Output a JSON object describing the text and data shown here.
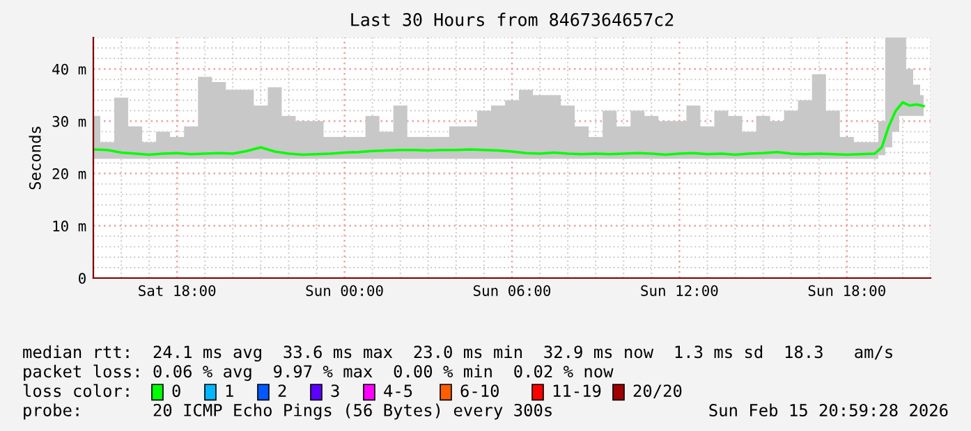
{
  "chart_data": {
    "type": "line",
    "title": "Last 30 Hours from 8467364657c2",
    "ylabel": "Seconds",
    "xlim": [
      "2026-02-14T15:00",
      "2026-02-15T21:00"
    ],
    "xticks": [
      {
        "value": "2026-02-14T18:00",
        "label": "Sat 18:00"
      },
      {
        "value": "2026-02-15T00:00",
        "label": "Sun 00:00"
      },
      {
        "value": "2026-02-15T06:00",
        "label": "Sun 06:00"
      },
      {
        "value": "2026-02-15T12:00",
        "label": "Sun 12:00"
      },
      {
        "value": "2026-02-15T18:00",
        "label": "Sun 18:00"
      }
    ],
    "ylim": [
      0,
      46
    ],
    "yticks": [
      0,
      {
        "value": 10,
        "label": "10 m"
      },
      {
        "value": 20,
        "label": "20 m"
      },
      {
        "value": 30,
        "label": "30 m"
      },
      {
        "value": 40,
        "label": "40 m"
      }
    ],
    "grid": true,
    "x": [
      "2026-02-14T15:00",
      "2026-02-14T15:30",
      "2026-02-14T16:00",
      "2026-02-14T16:30",
      "2026-02-14T17:00",
      "2026-02-14T17:30",
      "2026-02-14T18:00",
      "2026-02-14T18:30",
      "2026-02-14T19:00",
      "2026-02-14T19:30",
      "2026-02-14T20:00",
      "2026-02-14T20:30",
      "2026-02-14T21:00",
      "2026-02-14T21:30",
      "2026-02-14T22:00",
      "2026-02-14T22:30",
      "2026-02-14T23:00",
      "2026-02-14T23:30",
      "2026-02-15T00:00",
      "2026-02-15T00:30",
      "2026-02-15T01:00",
      "2026-02-15T01:30",
      "2026-02-15T02:00",
      "2026-02-15T02:30",
      "2026-02-15T03:00",
      "2026-02-15T03:30",
      "2026-02-15T04:00",
      "2026-02-15T04:30",
      "2026-02-15T05:00",
      "2026-02-15T05:30",
      "2026-02-15T06:00",
      "2026-02-15T06:30",
      "2026-02-15T07:00",
      "2026-02-15T07:30",
      "2026-02-15T08:00",
      "2026-02-15T08:30",
      "2026-02-15T09:00",
      "2026-02-15T09:30",
      "2026-02-15T10:00",
      "2026-02-15T10:30",
      "2026-02-15T11:00",
      "2026-02-15T11:30",
      "2026-02-15T12:00",
      "2026-02-15T12:30",
      "2026-02-15T13:00",
      "2026-02-15T13:30",
      "2026-02-15T14:00",
      "2026-02-15T14:30",
      "2026-02-15T15:00",
      "2026-02-15T15:30",
      "2026-02-15T16:00",
      "2026-02-15T16:30",
      "2026-02-15T17:00",
      "2026-02-15T17:30",
      "2026-02-15T18:00",
      "2026-02-15T18:30",
      "2026-02-15T19:00",
      "2026-02-15T19:15",
      "2026-02-15T19:30",
      "2026-02-15T19:45",
      "2026-02-15T20:00",
      "2026-02-15T20:15",
      "2026-02-15T20:30",
      "2026-02-15T20:45"
    ],
    "series": [
      {
        "color": "#00ff00",
        "values": [
          24.6,
          24.5,
          24.0,
          23.8,
          23.6,
          23.8,
          23.9,
          23.7,
          23.8,
          23.9,
          23.8,
          24.3,
          25.0,
          24.2,
          23.8,
          23.6,
          23.7,
          23.8,
          24.0,
          24.1,
          24.3,
          24.4,
          24.5,
          24.5,
          24.4,
          24.5,
          24.5,
          24.6,
          24.5,
          24.4,
          24.2,
          23.9,
          23.8,
          24.0,
          23.8,
          23.7,
          23.8,
          23.7,
          23.8,
          23.9,
          23.8,
          23.6,
          23.8,
          23.9,
          23.7,
          23.8,
          23.6,
          23.8,
          23.9,
          24.1,
          23.8,
          23.7,
          23.8,
          23.7,
          23.6,
          23.7,
          23.8,
          25.0,
          29.0,
          32.0,
          33.6,
          33.0,
          33.2,
          32.9
        ],
        "lower": [
          22.8,
          22.8,
          22.8,
          22.8,
          22.8,
          22.8,
          22.8,
          22.8,
          22.8,
          22.8,
          22.8,
          22.8,
          22.8,
          22.8,
          22.8,
          22.8,
          22.8,
          22.8,
          22.8,
          22.8,
          22.8,
          22.8,
          22.8,
          22.8,
          22.8,
          22.8,
          22.8,
          22.8,
          22.8,
          22.8,
          22.8,
          22.8,
          22.8,
          22.8,
          22.8,
          22.8,
          22.8,
          22.8,
          22.8,
          22.8,
          22.8,
          22.8,
          22.8,
          22.8,
          22.8,
          22.8,
          22.8,
          22.8,
          22.8,
          22.8,
          22.8,
          22.8,
          22.8,
          22.8,
          22.8,
          22.8,
          22.8,
          23.5,
          25.0,
          28.0,
          31.0,
          31.0,
          31.0,
          31.0
        ],
        "upper": [
          31,
          26,
          34.5,
          29,
          26,
          28,
          27,
          29,
          38.5,
          37.5,
          36,
          36,
          33,
          36.5,
          31,
          30,
          30,
          27,
          27,
          27,
          31,
          28,
          33,
          27,
          27,
          27,
          29,
          29,
          32,
          33,
          34,
          36,
          35,
          35,
          33,
          29,
          27,
          32,
          29,
          32,
          31,
          30,
          30,
          33,
          29,
          32,
          31,
          28,
          31,
          30,
          32,
          34,
          39,
          32,
          27,
          26,
          26,
          30,
          46,
          46,
          46,
          40,
          37,
          35
        ]
      }
    ],
    "annotations": [
      "median rtt:  24.1 ms avg  33.6 ms max  23.0 ms min  32.9 ms now  1.3 ms sd  18.3   am/s",
      "packet loss: 0.06 % avg  9.97 % max  0.00 % min  0.02 % now",
      "loss color:",
      "0",
      "1",
      "2",
      "3",
      "4-5",
      "6-10",
      "11-19",
      "20/20",
      "probe:       20 ICMP Echo Pings (56 Bytes) every 300s",
      "Sun Feb 15 20:59:28 2026"
    ]
  }
}
